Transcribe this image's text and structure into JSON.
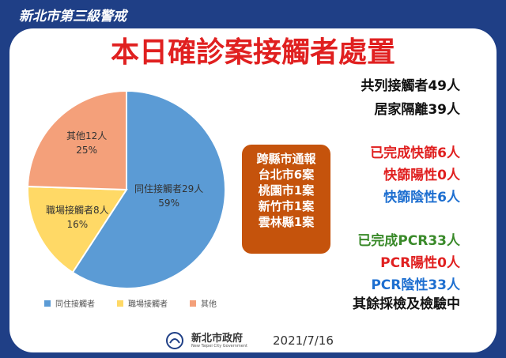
{
  "header": {
    "badge": "新北市第三級警戒",
    "title": "本日確診案接觸者處置"
  },
  "chart_data": {
    "type": "pie",
    "categories": [
      "同住接觸者",
      "職場接觸者",
      "其他"
    ],
    "values": [
      29,
      8,
      12
    ],
    "labels": [
      {
        "name": "同住接觸者29人",
        "pct": "59%"
      },
      {
        "name": "職場接觸者8人",
        "pct": "16%"
      },
      {
        "name": "其他12人",
        "pct": "25%"
      }
    ],
    "colors": [
      "#5b9bd5",
      "#ffd966",
      "#f4a07a"
    ],
    "legend": "bottom"
  },
  "orange_box": {
    "lines": [
      "跨縣市通報",
      "台北市6案",
      "桃園市1案",
      "新竹市1案",
      "雲林縣1案"
    ]
  },
  "stats": [
    {
      "text": "共列接觸者49人",
      "color": "#111111"
    },
    {
      "text": "居家隔離39人",
      "color": "#111111"
    },
    {
      "text": "已完成快篩6人",
      "color": "#e02020"
    },
    {
      "text": "快篩陽性0人",
      "color": "#e02020"
    },
    {
      "text": "快篩陰性6人",
      "color": "#1e6fd0"
    },
    {
      "text": "已完成PCR33人",
      "color": "#3a8a2a"
    },
    {
      "text": "PCR陽性0人",
      "color": "#e02020"
    },
    {
      "text": "PCR陰性33人",
      "color": "#1e6fd0"
    },
    {
      "text": "其餘採檢及檢驗中",
      "color": "#111111"
    }
  ],
  "footer": {
    "org": "新北市政府",
    "org_en": "New Taipei City Government",
    "date": "2021/7/16"
  }
}
